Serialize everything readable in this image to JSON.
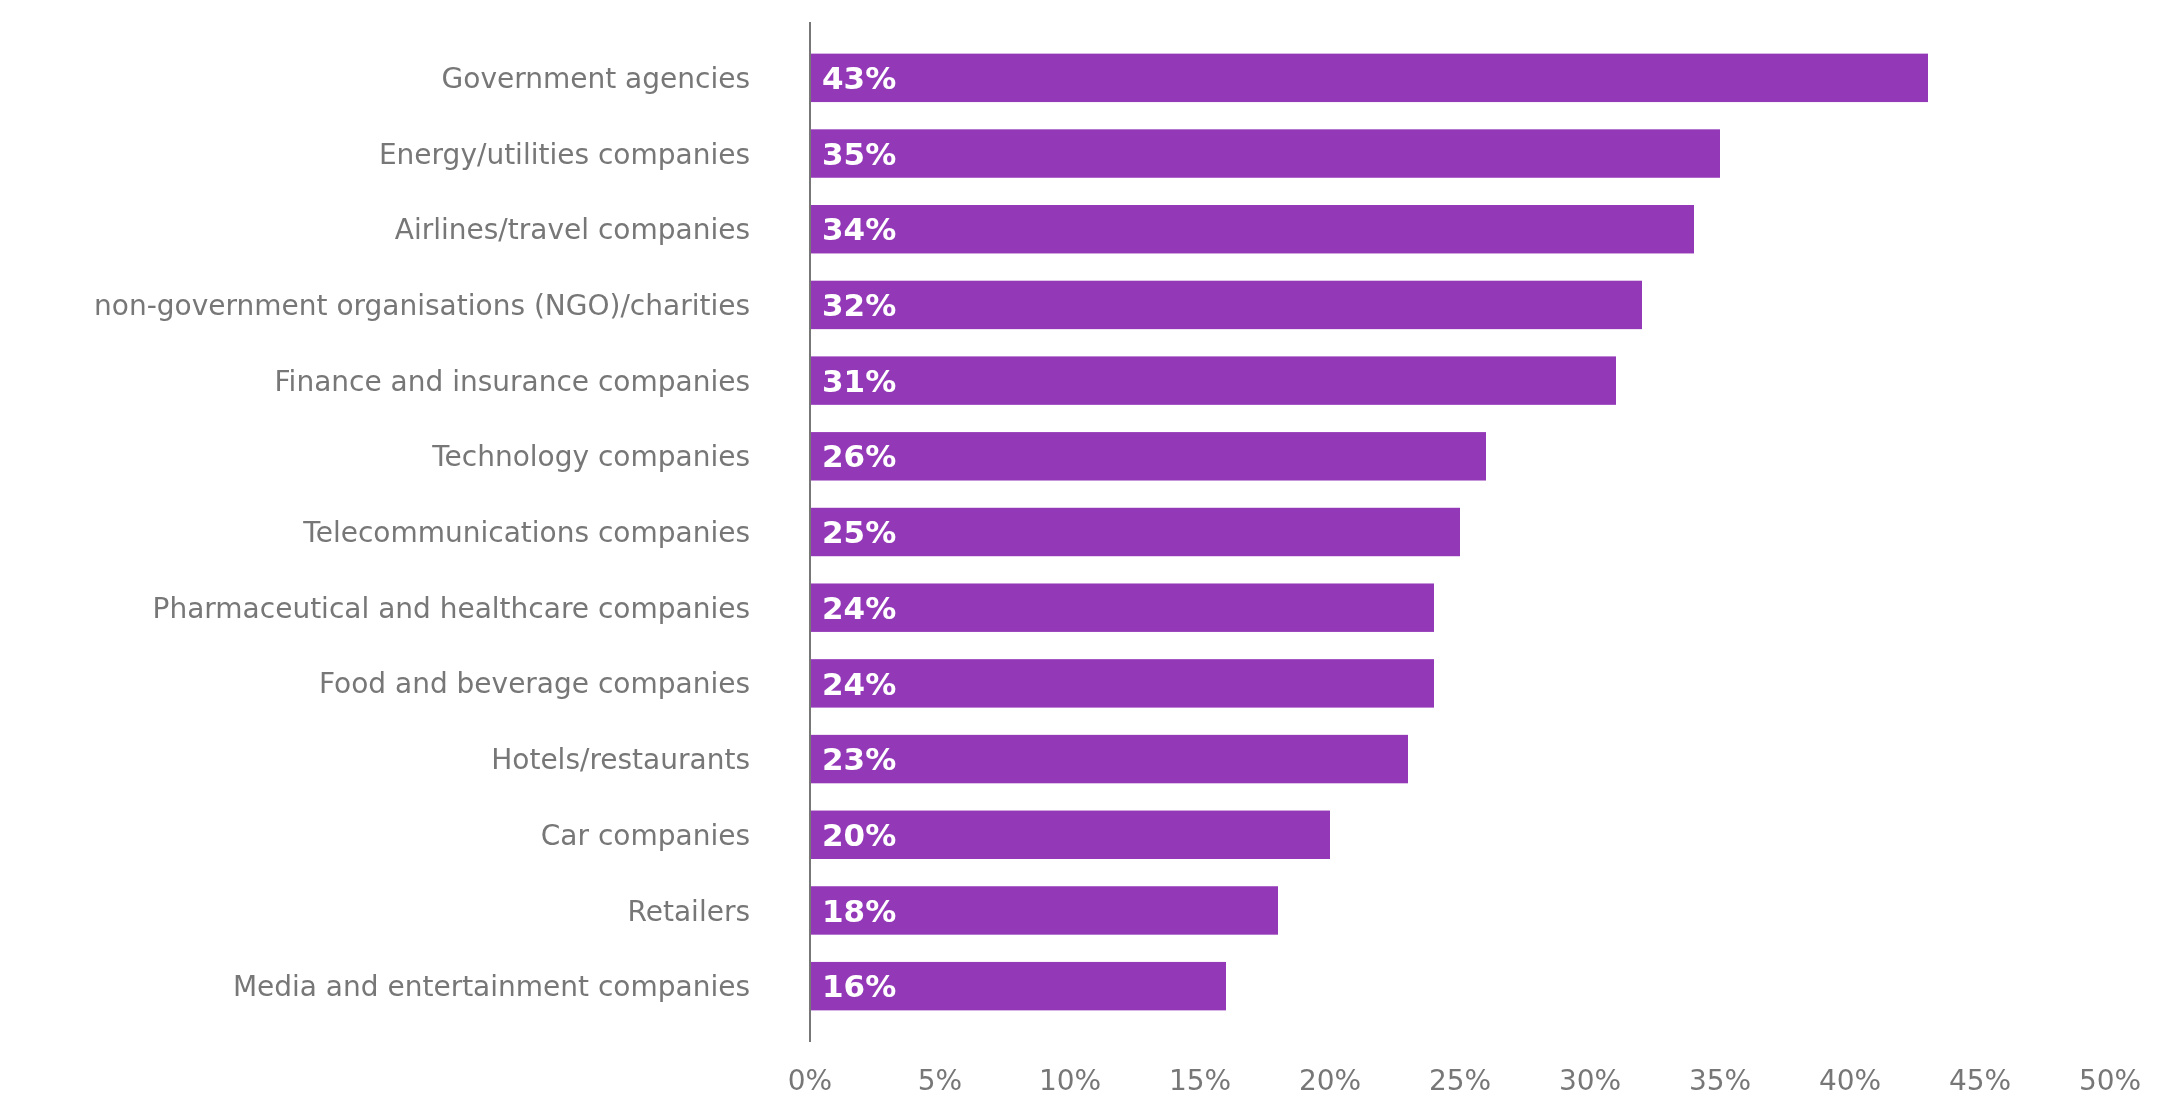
{
  "chart_data": {
    "type": "bar",
    "orientation": "horizontal",
    "categories": [
      "Government agencies",
      "Energy/utilities companies",
      "Airlines/travel companies",
      "non-government organisations (NGO)/charities",
      "Finance and insurance companies",
      "Technology companies",
      "Telecommunications companies",
      "Pharmaceutical and healthcare companies",
      "Food and beverage companies",
      "Hotels/restaurants",
      "Car companies",
      "Retailers",
      "Media and entertainment companies"
    ],
    "values": [
      43,
      35,
      34,
      32,
      31,
      26,
      25,
      24,
      24,
      23,
      20,
      18,
      16
    ],
    "color": "#9339b8",
    "xlim": [
      0,
      50
    ],
    "xticks": [
      {
        "value": 0,
        "label": "0%"
      },
      {
        "value": 5,
        "label": "5%"
      },
      {
        "value": 10,
        "label": "10%"
      },
      {
        "value": 15,
        "label": "15%"
      },
      {
        "value": 20,
        "label": "20%"
      },
      {
        "value": 25,
        "label": "25%"
      },
      {
        "value": 30,
        "label": "30%"
      },
      {
        "value": 35,
        "label": "35%"
      },
      {
        "value": 40,
        "label": "40%"
      },
      {
        "value": 45,
        "label": "45%"
      },
      {
        "value": 50,
        "label": "50%"
      }
    ],
    "value_labels": [
      "43%",
      "35%",
      "34%",
      "32%",
      "31%",
      "26%",
      "25%",
      "24%",
      "24%",
      "23%",
      "20%",
      "18%",
      "16%"
    ],
    "grid": false
  }
}
